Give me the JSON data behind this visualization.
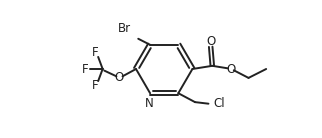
{
  "bg_color": "#ffffff",
  "line_color": "#222222",
  "line_width": 1.4,
  "font_size": 8.5,
  "figsize": [
    3.22,
    1.38
  ],
  "dpi": 100,
  "xlim": [
    0,
    10
  ],
  "ylim": [
    0,
    4.3
  ]
}
